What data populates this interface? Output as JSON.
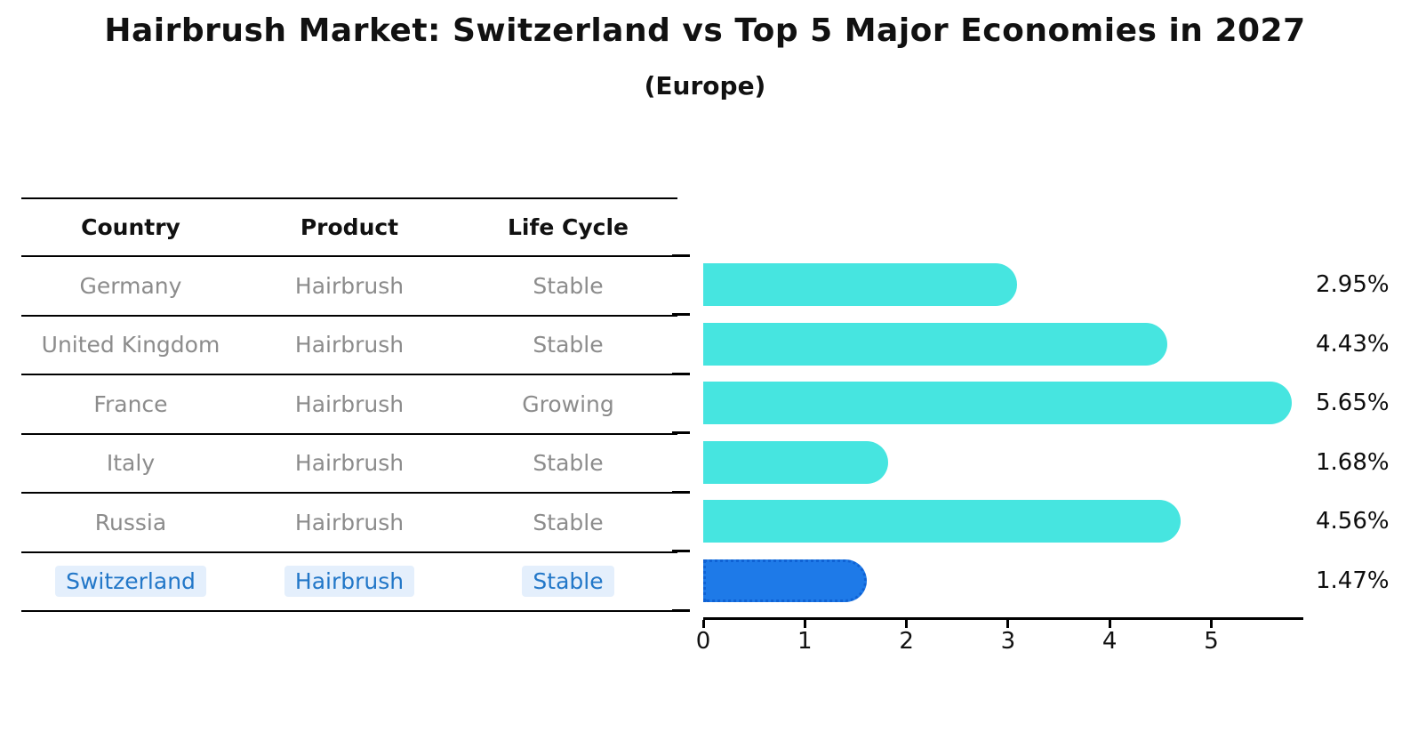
{
  "header": {
    "title": "Hairbrush Market: Switzerland vs Top 5 Major Economies in 2027",
    "subtitle": "(Europe)"
  },
  "table": {
    "headers": [
      "Country",
      "Product",
      "Life Cycle"
    ],
    "rows": [
      [
        "Germany",
        "Hairbrush",
        "Stable"
      ],
      [
        "United Kingdom",
        "Hairbrush",
        "Stable"
      ],
      [
        "France",
        "Hairbrush",
        "Growing"
      ],
      [
        "Italy",
        "Hairbrush",
        "Stable"
      ],
      [
        "Russia",
        "Hairbrush",
        "Stable"
      ],
      [
        "Switzerland",
        "Hairbrush",
        "Stable"
      ]
    ],
    "highlight_row": "Switzerland",
    "text_color": "#8c8c8c",
    "highlight_text_color": "#2277c8"
  },
  "chart_data": {
    "type": "bar",
    "orientation": "horizontal",
    "title": "Hairbrush Market: Switzerland vs Top 5 Major Economies in 2027",
    "subtitle": "(Europe)",
    "categories": [
      "Germany",
      "United Kingdom",
      "France",
      "Italy",
      "Russia",
      "Switzerland"
    ],
    "values": [
      2.95,
      4.43,
      5.65,
      1.68,
      4.56,
      1.47
    ],
    "value_labels": [
      "2.95%",
      "4.43%",
      "5.65%",
      "1.68%",
      "4.56%",
      "1.47%"
    ],
    "x_ticks": [
      "0",
      "1",
      "2",
      "3",
      "4",
      "5"
    ],
    "xlim": [
      0,
      5.9
    ],
    "xlabel": "",
    "ylabel": "",
    "grid": false,
    "legend_position": "none",
    "bar_color": "#46e5e0",
    "highlight_color": "#1e7ae8",
    "highlight_index": 5
  }
}
